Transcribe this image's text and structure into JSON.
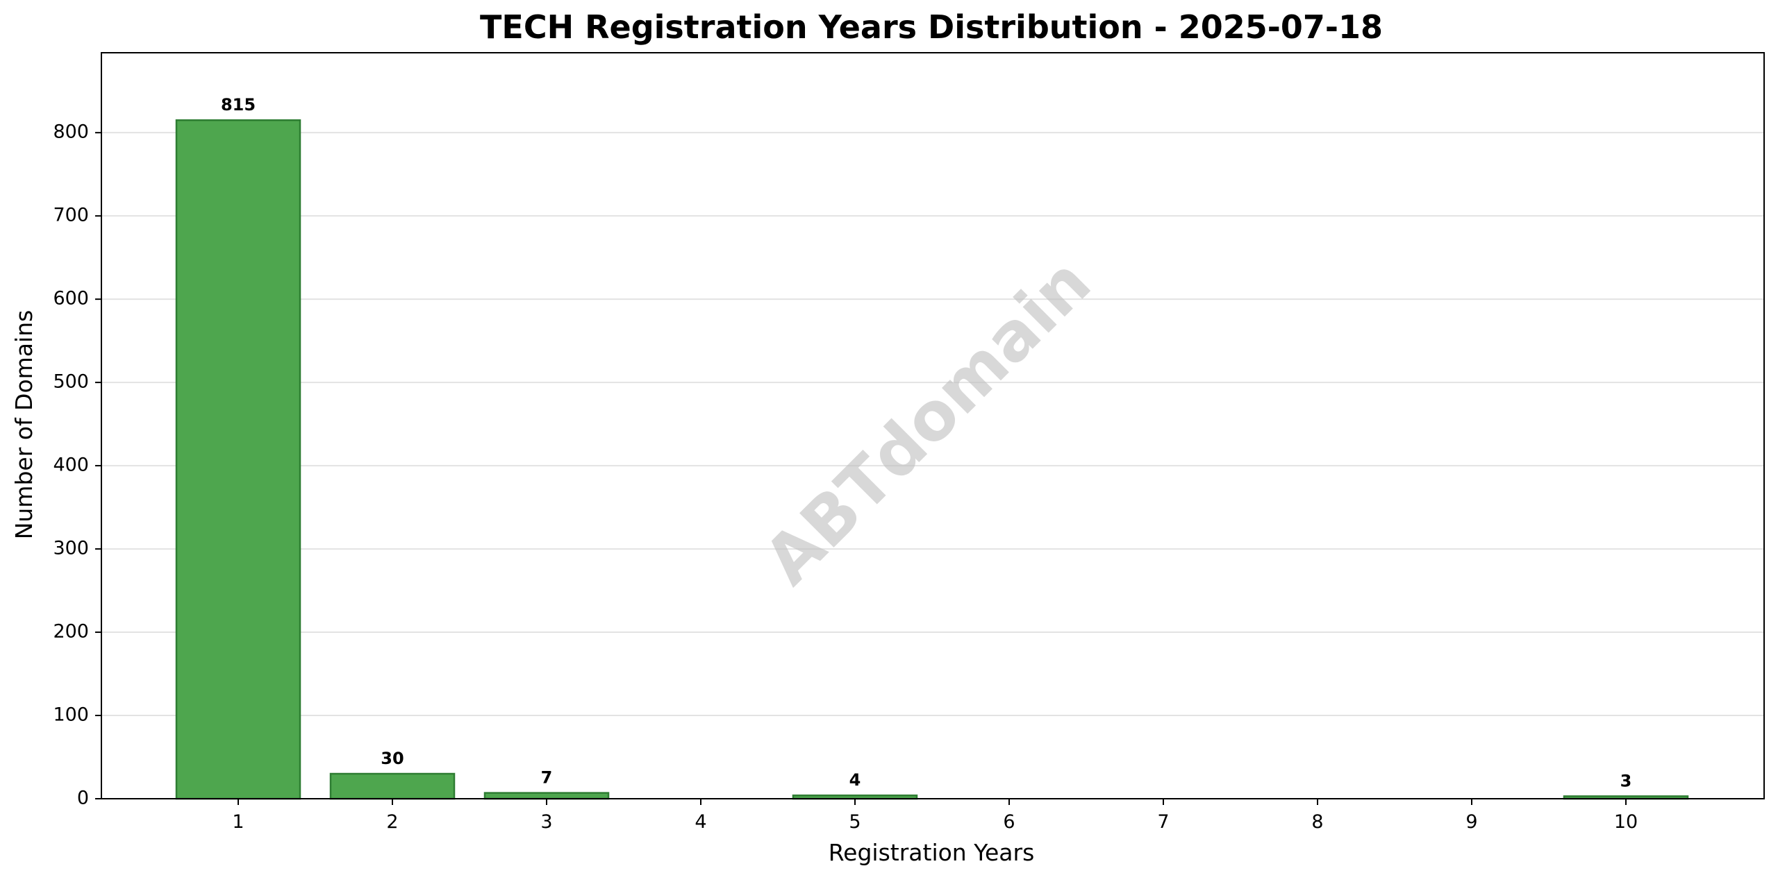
{
  "chart_data": {
    "type": "bar",
    "title": "TECH Registration Years Distribution - 2025-07-18",
    "xlabel": "Registration Years",
    "ylabel": "Number of Domains",
    "categories": [
      "1",
      "2",
      "3",
      "4",
      "5",
      "6",
      "7",
      "8",
      "9",
      "10"
    ],
    "values": [
      815,
      30,
      7,
      0,
      4,
      0,
      0,
      0,
      0,
      3
    ],
    "data_labels": [
      "815",
      "30",
      "7",
      "",
      "4",
      "",
      "",
      "",
      "",
      "3"
    ],
    "ylim": [
      0,
      896
    ],
    "yticks": [
      0,
      100,
      200,
      300,
      400,
      500,
      600,
      700,
      800
    ],
    "grid": "horizontal",
    "legend": "none",
    "colors": {
      "bar_fill": "#4ea64e",
      "bar_edge": "#2e7d32",
      "grid": "#e3e3e3"
    }
  },
  "watermark": {
    "text": "ABTdomain"
  }
}
